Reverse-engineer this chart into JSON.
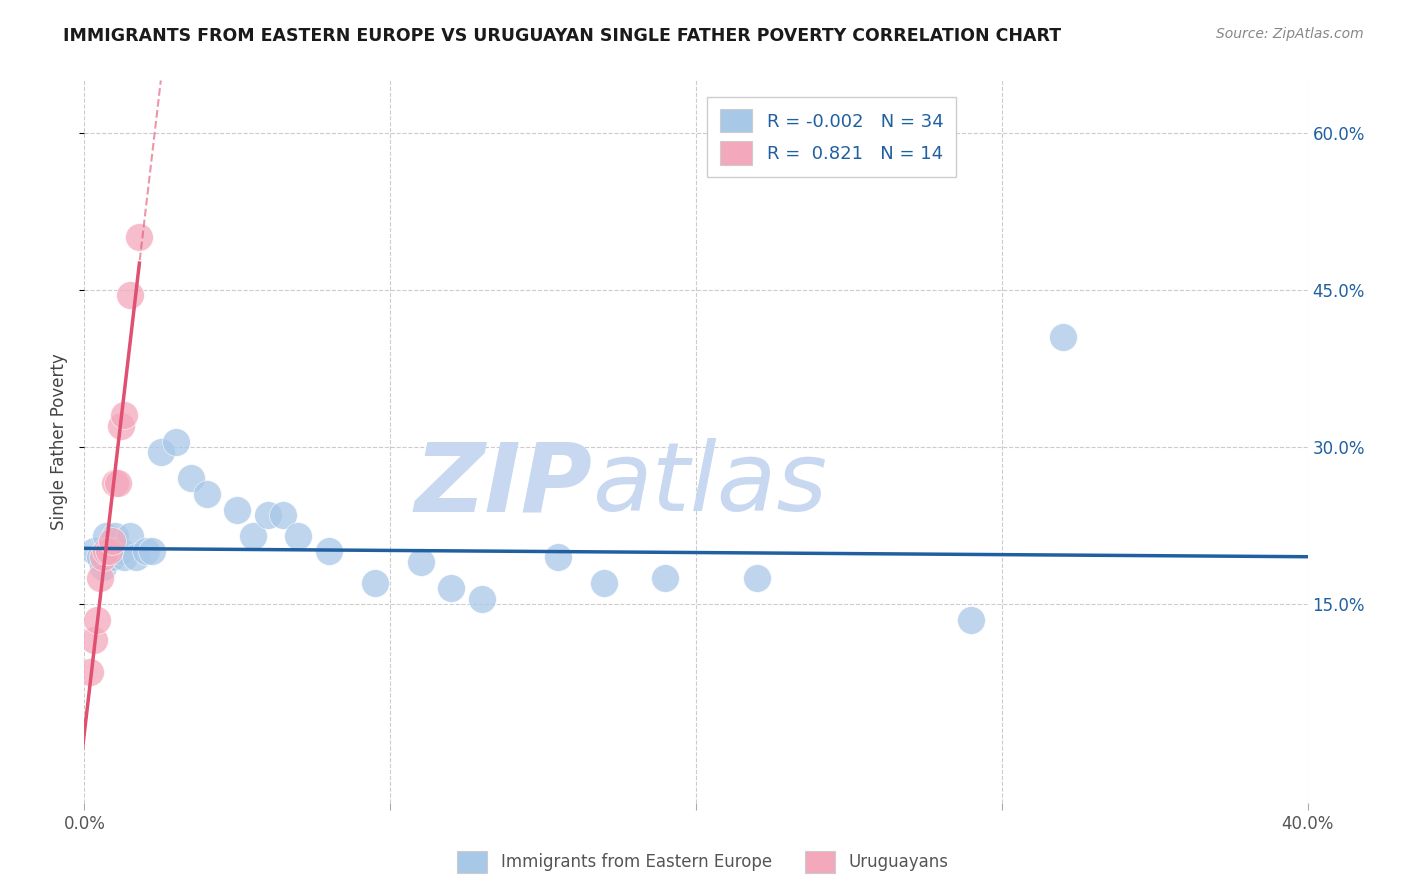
{
  "title": "IMMIGRANTS FROM EASTERN EUROPE VS URUGUAYAN SINGLE FATHER POVERTY CORRELATION CHART",
  "source": "Source: ZipAtlas.com",
  "ylabel": "Single Father Poverty",
  "xlim": [
    0.0,
    0.4
  ],
  "ylim": [
    -0.04,
    0.65
  ],
  "y_ticks": [
    0.15,
    0.3,
    0.45,
    0.6
  ],
  "y_tick_labels": [
    "15.0%",
    "30.0%",
    "45.0%",
    "60.0%"
  ],
  "blue_R": -0.002,
  "blue_N": 34,
  "pink_R": 0.821,
  "pink_N": 14,
  "blue_color": "#a8c8e8",
  "pink_color": "#f4a8bc",
  "blue_line_color": "#2060a0",
  "pink_line_color": "#e05070",
  "watermark_zip_color": "#c8d8f0",
  "watermark_atlas_color": "#c8d8f0",
  "background_color": "#ffffff",
  "grid_color": "#cccccc",
  "blue_points_x": [
    0.003,
    0.005,
    0.006,
    0.007,
    0.008,
    0.009,
    0.01,
    0.01,
    0.012,
    0.013,
    0.015,
    0.017,
    0.02,
    0.022,
    0.025,
    0.03,
    0.035,
    0.04,
    0.05,
    0.055,
    0.06,
    0.065,
    0.07,
    0.08,
    0.095,
    0.11,
    0.12,
    0.13,
    0.155,
    0.17,
    0.19,
    0.22,
    0.29,
    0.32
  ],
  "blue_points_y": [
    0.2,
    0.195,
    0.185,
    0.215,
    0.2,
    0.195,
    0.215,
    0.2,
    0.2,
    0.195,
    0.215,
    0.195,
    0.2,
    0.2,
    0.295,
    0.305,
    0.27,
    0.255,
    0.24,
    0.215,
    0.235,
    0.235,
    0.215,
    0.2,
    0.17,
    0.19,
    0.165,
    0.155,
    0.195,
    0.17,
    0.175,
    0.175,
    0.135,
    0.405
  ],
  "pink_points_x": [
    0.002,
    0.003,
    0.004,
    0.005,
    0.006,
    0.007,
    0.008,
    0.009,
    0.01,
    0.011,
    0.012,
    0.013,
    0.015,
    0.018
  ],
  "pink_points_y": [
    0.085,
    0.115,
    0.135,
    0.175,
    0.195,
    0.2,
    0.2,
    0.21,
    0.265,
    0.265,
    0.32,
    0.33,
    0.445,
    0.5
  ],
  "blue_line_y_intercept": 0.203,
  "blue_line_slope": -0.02,
  "pink_line_x_start": -0.002,
  "pink_line_x_solid_end": 0.018,
  "pink_line_x_dash_end": 0.03
}
